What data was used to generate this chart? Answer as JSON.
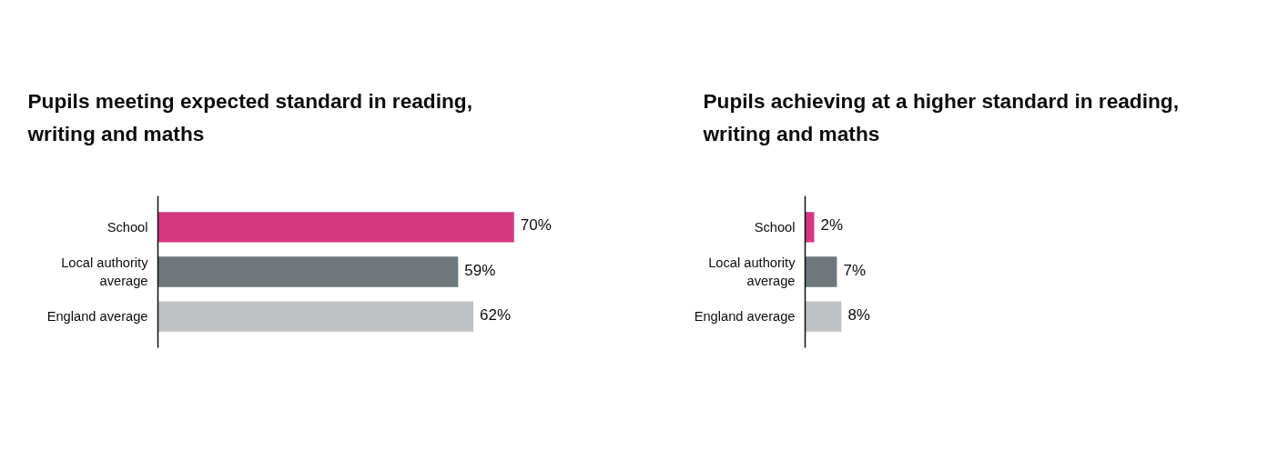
{
  "chart_data": [
    {
      "type": "bar",
      "orientation": "horizontal",
      "title": "Pupils meeting expected standard in reading, writing and maths",
      "categories": [
        "School",
        "Local authority average",
        "England average"
      ],
      "values": [
        70,
        59,
        62
      ],
      "colors": [
        "#d53880",
        "#6f777b",
        "#bfc1c3"
      ],
      "value_labels": [
        "70%",
        "59%",
        "62%"
      ],
      "tick_labels": "y",
      "grid": false
    },
    {
      "type": "bar",
      "orientation": "horizontal",
      "title": "Pupils achieving at a higher standard in reading, writing and maths",
      "categories": [
        "School",
        "Local authority average",
        "England average"
      ],
      "values": [
        2,
        7,
        8
      ],
      "colors": [
        "#d53880",
        "#6f777b",
        "#bfc1c3"
      ],
      "value_labels": [
        "2%",
        "7%",
        "8%"
      ],
      "tick_labels": "y",
      "grid": false
    }
  ]
}
